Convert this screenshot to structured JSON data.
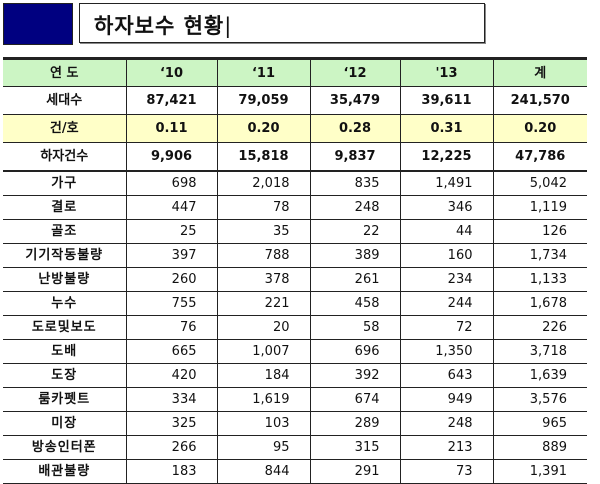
{
  "title": "하자보수 현황",
  "colors": {
    "title_square": "#000080",
    "header_bg": "#ccf5c4",
    "ratio_row_bg": "#ffffc8"
  },
  "table": {
    "header": [
      "연 도",
      "‘10",
      "‘11",
      "‘12",
      "'13",
      "계"
    ],
    "summary_rows": [
      {
        "label": "세대수",
        "values": [
          "87,421",
          "79,059",
          "35,479",
          "39,611",
          "241,570"
        ]
      },
      {
        "label": "건/호",
        "values": [
          "0.11",
          "0.20",
          "0.28",
          "0.31",
          "0.20"
        ]
      },
      {
        "label": "하자건수",
        "values": [
          "9,906",
          "15,818",
          "9,837",
          "12,225",
          "47,786"
        ]
      }
    ],
    "detail_rows": [
      {
        "label": "가구",
        "values": [
          "698",
          "2,018",
          "835",
          "1,491",
          "5,042"
        ]
      },
      {
        "label": "결로",
        "values": [
          "447",
          "78",
          "248",
          "346",
          "1,119"
        ]
      },
      {
        "label": "골조",
        "values": [
          "25",
          "35",
          "22",
          "44",
          "126"
        ]
      },
      {
        "label": "기기작동불량",
        "values": [
          "397",
          "788",
          "389",
          "160",
          "1,734"
        ]
      },
      {
        "label": "난방불량",
        "values": [
          "260",
          "378",
          "261",
          "234",
          "1,133"
        ]
      },
      {
        "label": "누수",
        "values": [
          "755",
          "221",
          "458",
          "244",
          "1,678"
        ]
      },
      {
        "label": "도로및보도",
        "values": [
          "76",
          "20",
          "58",
          "72",
          "226"
        ]
      },
      {
        "label": "도배",
        "values": [
          "665",
          "1,007",
          "696",
          "1,350",
          "3,718"
        ]
      },
      {
        "label": "도장",
        "values": [
          "420",
          "184",
          "392",
          "643",
          "1,639"
        ]
      },
      {
        "label": "룸카펫트",
        "values": [
          "334",
          "1,619",
          "674",
          "949",
          "3,576"
        ]
      },
      {
        "label": "미장",
        "values": [
          "325",
          "103",
          "289",
          "248",
          "965"
        ]
      },
      {
        "label": "방송인터폰",
        "values": [
          "266",
          "95",
          "315",
          "213",
          "889"
        ]
      },
      {
        "label": "배관불량",
        "values": [
          "183",
          "844",
          "291",
          "73",
          "1,391"
        ]
      }
    ]
  }
}
